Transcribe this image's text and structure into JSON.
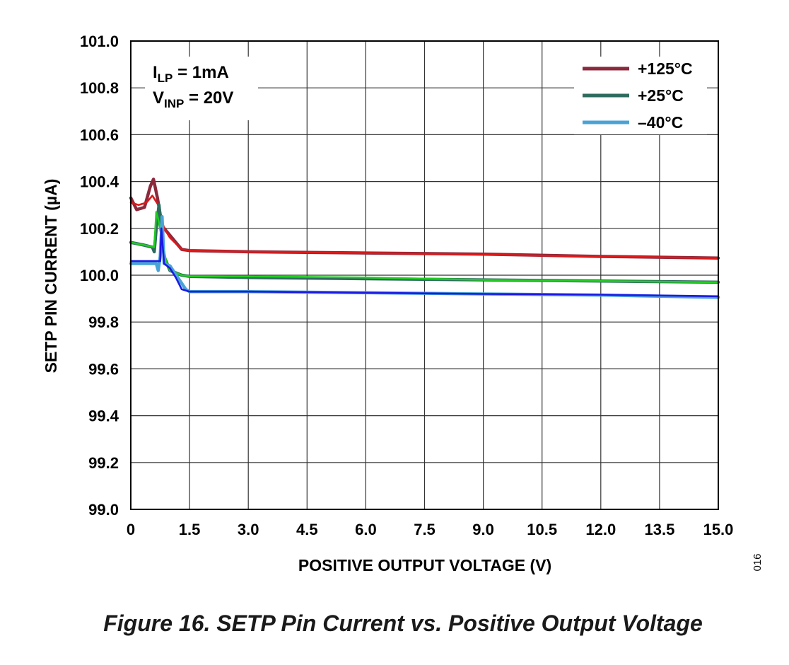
{
  "chart_data": {
    "type": "line",
    "xlabel": "POSITIVE OUTPUT VOLTAGE (V)",
    "ylabel": "SETP PIN CURRENT (µA)",
    "xlim": [
      0,
      15
    ],
    "ylim": [
      99.0,
      101.0
    ],
    "x_ticks": [
      "0",
      "1.5",
      "3.0",
      "4.5",
      "6.0",
      "7.5",
      "9.0",
      "10.5",
      "12.0",
      "13.5",
      "15.0"
    ],
    "y_ticks": [
      "101.0",
      "100.8",
      "100.6",
      "100.4",
      "100.2",
      "100.0",
      "99.8",
      "99.6",
      "99.4",
      "99.2",
      "99.0"
    ],
    "grid": true,
    "legend_position": "top-right",
    "legend": [
      {
        "label": "+125°C",
        "color": "#8b2a3c"
      },
      {
        "label": "+25°C",
        "color": "#2e6b5e"
      },
      {
        "label": "–40°C",
        "color": "#4aa3d6"
      }
    ],
    "annotation": {
      "line1_main": "I",
      "line1_sub": "LP",
      "line1_rest": " = 1mA",
      "line2_main": "V",
      "line2_sub": "INP",
      "line2_rest": " = 20V"
    },
    "series": [
      {
        "name": "+125°C",
        "color": "#8b2a3c",
        "x": [
          0,
          0.15,
          0.35,
          0.5,
          0.58,
          0.68,
          0.8,
          1.0,
          1.3,
          1.5,
          3.0,
          6.0,
          9.0,
          12.0,
          15.0
        ],
        "y": [
          100.33,
          100.28,
          100.29,
          100.38,
          100.41,
          100.33,
          100.21,
          100.17,
          100.11,
          100.105,
          100.1,
          100.095,
          100.09,
          100.08,
          100.073
        ]
      },
      {
        "name": "+125°C (overlay)",
        "color": "#e01818",
        "x": [
          0,
          0.2,
          0.4,
          0.55,
          0.7,
          0.85,
          1.0,
          1.3,
          1.5,
          3.0,
          6.0,
          9.0,
          12.0,
          15.0
        ],
        "y": [
          100.31,
          100.3,
          100.31,
          100.34,
          100.3,
          100.2,
          100.16,
          100.11,
          100.105,
          100.1,
          100.095,
          100.088,
          100.08,
          100.073
        ]
      },
      {
        "name": "+25°C",
        "color": "#2e6b5e",
        "x": [
          0,
          0.3,
          0.55,
          0.6,
          0.65,
          0.72,
          0.78,
          0.85,
          1.0,
          1.3,
          1.5,
          3.0,
          6.0,
          9.0,
          12.0,
          15.0
        ],
        "y": [
          100.14,
          100.13,
          100.12,
          100.1,
          100.2,
          100.3,
          100.2,
          100.08,
          100.02,
          100.0,
          99.995,
          99.99,
          99.985,
          99.98,
          99.975,
          99.97
        ]
      },
      {
        "name": "+25°C (overlay)",
        "color": "#22cc22",
        "x": [
          0,
          0.3,
          0.6,
          0.65,
          0.7,
          0.8,
          0.9,
          1.0,
          1.3,
          1.5,
          3.0,
          6.0,
          9.0,
          12.0,
          15.0
        ],
        "y": [
          100.14,
          100.13,
          100.12,
          100.27,
          100.24,
          100.15,
          100.06,
          100.02,
          100.0,
          99.995,
          99.995,
          99.99,
          99.98,
          99.975,
          99.97
        ]
      },
      {
        "name": "–40°C",
        "color": "#4aa3d6",
        "x": [
          0,
          0.4,
          0.65,
          0.7,
          0.75,
          0.8,
          0.85,
          1.0,
          1.2,
          1.4,
          1.5,
          3.0,
          6.0,
          9.0,
          12.0,
          15.0
        ],
        "y": [
          100.05,
          100.05,
          100.05,
          100.02,
          100.08,
          100.25,
          100.05,
          100.04,
          99.99,
          99.94,
          99.93,
          99.93,
          99.925,
          99.92,
          99.915,
          99.905
        ]
      },
      {
        "name": "–40°C (overlay)",
        "color": "#1a1ae6",
        "x": [
          0,
          0.5,
          0.75,
          0.78,
          0.85,
          1.0,
          1.15,
          1.3,
          1.5,
          3.0,
          6.0,
          9.0,
          12.0,
          15.0
        ],
        "y": [
          100.06,
          100.06,
          100.06,
          100.2,
          100.05,
          100.03,
          99.99,
          99.94,
          99.93,
          99.93,
          99.925,
          99.92,
          99.917,
          99.91
        ]
      }
    ]
  },
  "figure_id": "016",
  "caption": "Figure 16. SETP Pin Current vs. Positive Output Voltage"
}
